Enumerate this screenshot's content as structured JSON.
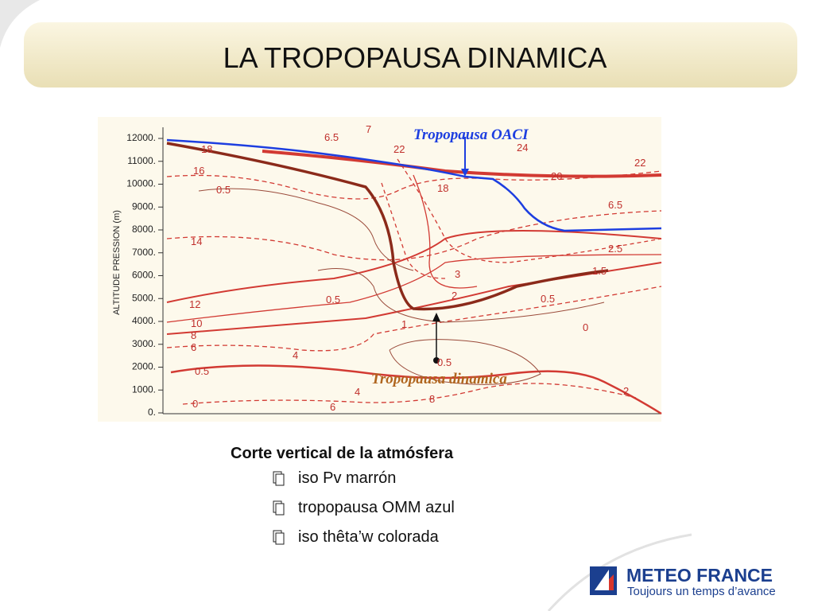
{
  "title": "LA TROPOPAUSA DINAMICA",
  "figure": {
    "axis_label": "ALTITUDE PRESSION (m)",
    "yticks": [
      "12000.",
      "11000.",
      "10000.",
      "9000.",
      "8000.",
      "7000.",
      "6000.",
      "5000.",
      "4000.",
      "3000.",
      "2000.",
      "1000.",
      "0."
    ],
    "annotations": [
      "Tropopausa OACI",
      "Tropopausa dinamica"
    ],
    "contour_labels": [
      "16",
      "0.5",
      "14",
      "12",
      "10",
      "8",
      "6",
      "4",
      "0.5",
      "0",
      "6",
      "4",
      "8",
      "0.5",
      "1.5",
      "0.5",
      "0",
      "2",
      "24",
      "22",
      "20",
      "22",
      "18",
      "6.5",
      "2.5",
      "3",
      "2",
      "1",
      "0.5",
      "18",
      "7",
      "6.5"
    ]
  },
  "caption": {
    "heading": "Corte  vertical de la atmósfera",
    "bullets": [
      "iso Pv  marrón",
      "tropopausa OMM azul",
      "iso thêta’w colorada"
    ]
  },
  "logo": {
    "name": "METEO FRANCE",
    "tagline": "Toujours un temps d’avance"
  }
}
